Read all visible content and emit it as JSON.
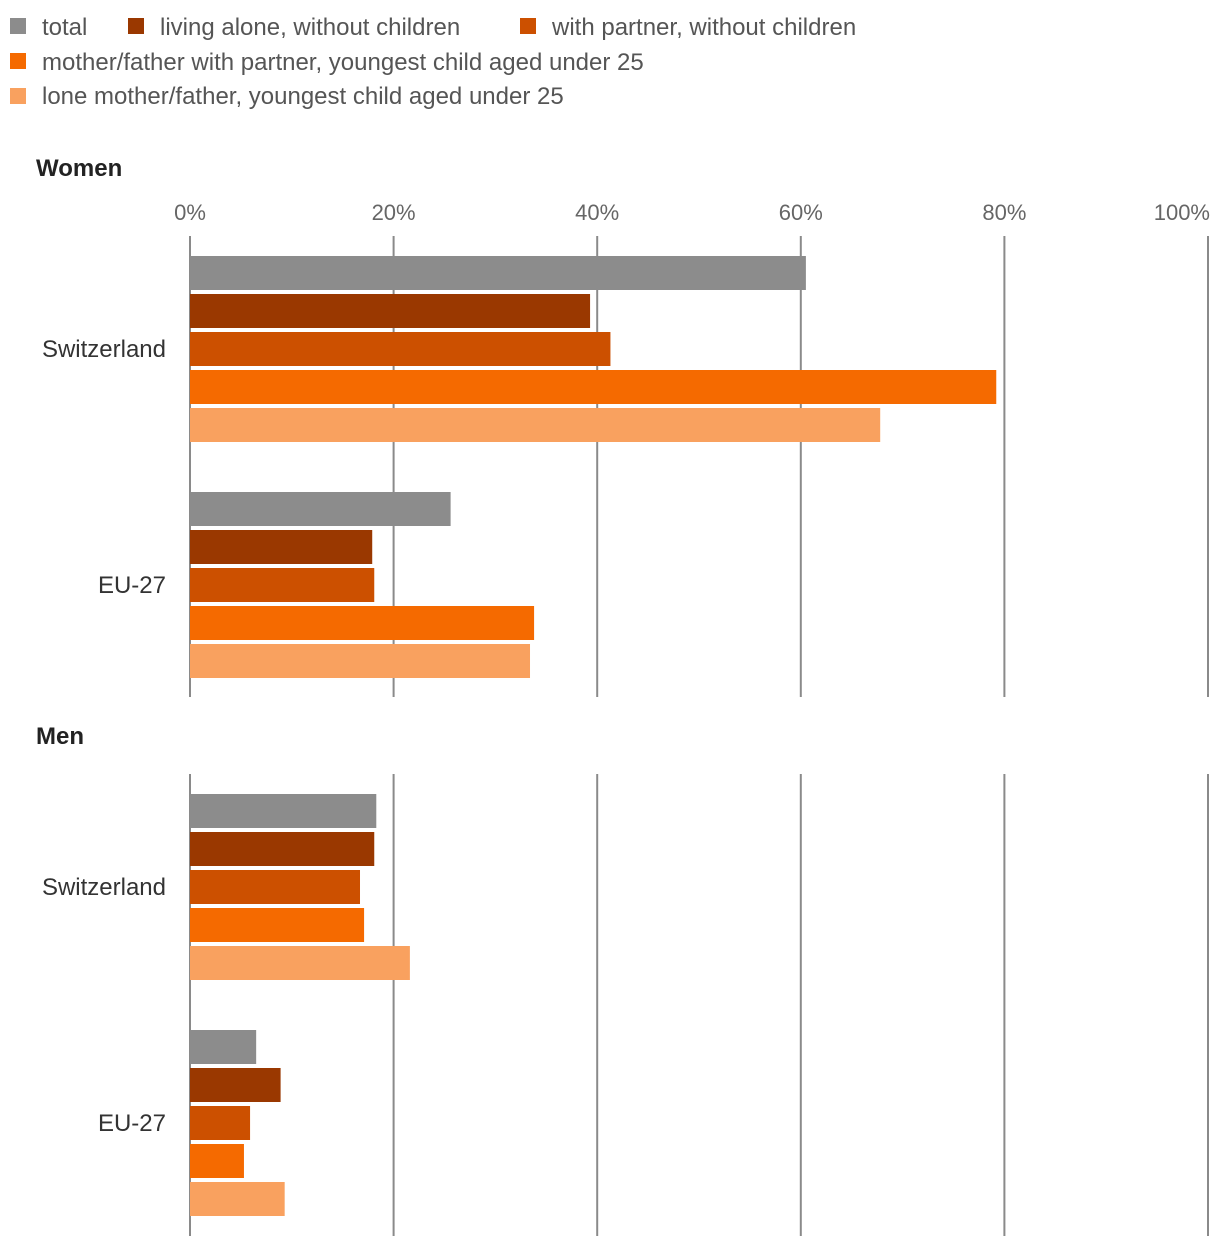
{
  "chart_data": {
    "type": "bar",
    "orientation": "horizontal",
    "legend_position": "top-left",
    "grid": true,
    "xlim": [
      0,
      100
    ],
    "ticks": [
      "0%",
      "20%",
      "40%",
      "60%",
      "80%",
      "100%"
    ],
    "tick_values": [
      0,
      20,
      40,
      60,
      80,
      100
    ],
    "series": [
      {
        "name": "total",
        "color": "#8c8c8c"
      },
      {
        "name": "living alone, without children",
        "color": "#9a3800"
      },
      {
        "name": "with partner, without children",
        "color": "#cc5000"
      },
      {
        "name": "mother/father with partner, youngest child aged under 25",
        "color": "#f56a00"
      },
      {
        "name": "lone mother/father, youngest child aged under 25",
        "color": "#f9a15f"
      }
    ],
    "panels": [
      {
        "title": "Women",
        "categories": [
          "Switzerland",
          "EU-27"
        ],
        "values": [
          [
            60.5,
            39.3,
            41.3,
            79.2,
            67.8
          ],
          [
            25.6,
            17.9,
            18.1,
            33.8,
            33.4
          ]
        ]
      },
      {
        "title": "Men",
        "categories": [
          "Switzerland",
          "EU-27"
        ],
        "values": [
          [
            18.3,
            18.1,
            16.7,
            17.1,
            21.6
          ],
          [
            6.5,
            8.9,
            5.9,
            5.3,
            9.3
          ]
        ]
      }
    ]
  }
}
